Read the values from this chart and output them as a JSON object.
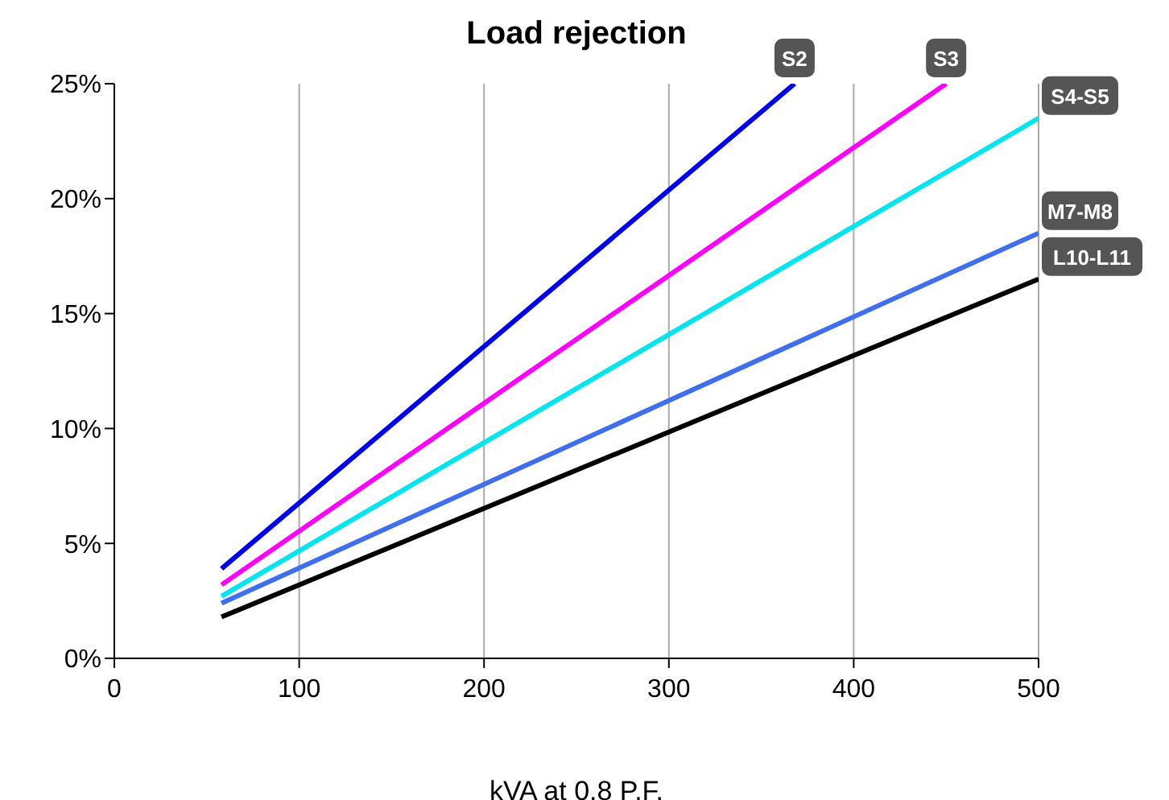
{
  "chart_data": {
    "type": "line",
    "title": "Load rejection",
    "xlabel": "kVA at 0.8 P.F.",
    "series": [
      {
        "name": "S2",
        "color": "#0000ee",
        "x": [
          58,
          368
        ],
        "values": [
          3.9,
          25
        ]
      },
      {
        "name": "S3",
        "color": "#ff00ff",
        "x": [
          58,
          450
        ],
        "values": [
          3.2,
          25
        ]
      },
      {
        "name": "S4-S5",
        "color": "#00e5ee",
        "x": [
          58,
          500
        ],
        "values": [
          2.7,
          23.5
        ]
      },
      {
        "name": "M7-M8",
        "color": "#3f6fef",
        "x": [
          58,
          500
        ],
        "values": [
          2.4,
          18.5
        ]
      },
      {
        "name": "L10-L11",
        "color": "#000000",
        "x": [
          58,
          500
        ],
        "values": [
          1.8,
          16.5
        ]
      }
    ],
    "xlim": [
      0,
      500
    ],
    "xticks": [
      0,
      100,
      200,
      300,
      400,
      500
    ],
    "ylim": [
      0,
      25
    ],
    "yticks": [
      {
        "value": 0,
        "label": "0%"
      },
      {
        "value": 5,
        "label": "5%"
      },
      {
        "value": 10,
        "label": "10%"
      },
      {
        "value": 15,
        "label": "15%"
      },
      {
        "value": 20,
        "label": "20%"
      },
      {
        "value": 25,
        "label": "25%"
      }
    ],
    "grid": "x",
    "legend": false,
    "marker": "none",
    "line_style": "solid"
  }
}
